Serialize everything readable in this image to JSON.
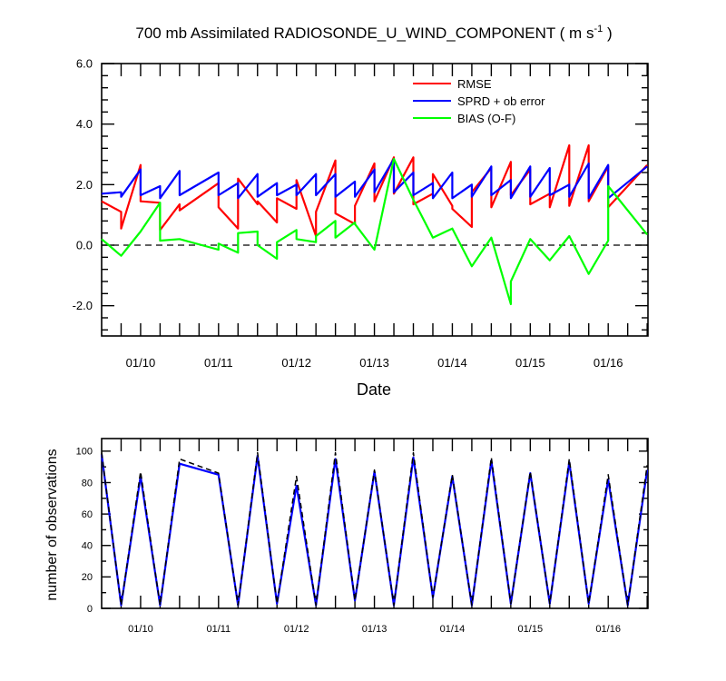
{
  "chart_data": [
    {
      "type": "line",
      "title": "700 mb Assimilated RADIOSONDE_U_WIND_COMPONENT ( m s",
      "title_unit_exponent": "-1",
      "title_suffix": " )",
      "xlabel": "Date",
      "ylabel": "",
      "ylim": [
        -3.0,
        6.0
      ],
      "y_ticks": [
        -2.0,
        0.0,
        2.0,
        4.0,
        6.0
      ],
      "y_tick_labels": [
        "-2.0",
        "0.0",
        "2.0",
        "4.0",
        "6.0"
      ],
      "xlim": [
        0,
        14.02
      ],
      "x_ticks": [
        1.0,
        3.0,
        5.0,
        7.0,
        9.0,
        11.0,
        13.0
      ],
      "x_tick_labels": [
        "01/10",
        "01/11",
        "01/12",
        "01/13",
        "01/14",
        "01/15",
        "01/16"
      ],
      "zero_line": true,
      "legend_position": "top-right",
      "series": [
        {
          "name": "RMSE",
          "color": "#ff0000",
          "x": [
            0.0,
            0.5,
            0.5,
            1.0,
            1.0,
            1.5,
            1.5,
            2.0,
            2.0,
            3.0,
            3.0,
            3.5,
            3.5,
            4.0,
            4.0,
            4.5,
            4.5,
            5.0,
            5.0,
            5.5,
            5.5,
            6.0,
            6.0,
            6.5,
            6.5,
            7.0,
            7.0,
            7.5,
            7.5,
            8.0,
            8.0,
            8.5,
            8.5,
            9.0,
            9.0,
            9.5,
            9.5,
            10.0,
            10.0,
            10.5,
            10.5,
            11.0,
            11.0,
            11.5,
            11.5,
            12.0,
            12.0,
            12.5,
            12.5,
            13.0,
            13.0,
            14.0
          ],
          "values": [
            1.45,
            1.1,
            0.55,
            2.65,
            1.45,
            1.4,
            0.5,
            1.35,
            1.15,
            2.05,
            1.25,
            0.55,
            2.2,
            1.35,
            1.45,
            0.75,
            1.55,
            1.2,
            2.15,
            0.3,
            1.1,
            2.8,
            1.05,
            0.7,
            1.3,
            2.7,
            1.45,
            2.9,
            1.7,
            2.9,
            1.35,
            1.7,
            2.35,
            1.3,
            1.2,
            0.6,
            1.75,
            2.55,
            1.25,
            2.75,
            1.65,
            2.5,
            1.35,
            1.7,
            1.25,
            3.3,
            1.3,
            3.3,
            1.45,
            2.6,
            1.25,
            2.65
          ]
        },
        {
          "name": "SPRD + ob error",
          "color": "#0000ff",
          "x": [
            0.0,
            0.5,
            0.5,
            1.0,
            1.0,
            1.5,
            1.5,
            2.0,
            2.0,
            3.0,
            3.0,
            3.5,
            3.5,
            4.0,
            4.0,
            4.5,
            4.5,
            5.0,
            5.0,
            5.5,
            5.5,
            6.0,
            6.0,
            6.5,
            6.5,
            7.0,
            7.0,
            7.5,
            7.5,
            8.0,
            8.0,
            8.5,
            8.5,
            9.0,
            9.0,
            9.5,
            9.5,
            10.0,
            10.0,
            10.5,
            10.5,
            11.0,
            11.0,
            11.5,
            11.5,
            12.0,
            12.0,
            12.5,
            12.5,
            13.0,
            13.0,
            14.0
          ],
          "values": [
            1.7,
            1.75,
            1.6,
            2.5,
            1.65,
            1.95,
            1.55,
            2.45,
            1.65,
            2.4,
            1.65,
            2.05,
            1.55,
            2.35,
            1.6,
            2.05,
            1.65,
            2.0,
            1.65,
            2.35,
            1.65,
            2.35,
            1.6,
            2.1,
            1.6,
            2.5,
            1.75,
            2.85,
            1.75,
            2.4,
            1.65,
            2.05,
            1.55,
            2.4,
            1.55,
            2.0,
            1.6,
            2.6,
            1.65,
            2.15,
            1.55,
            2.6,
            1.6,
            2.55,
            1.65,
            2.0,
            1.6,
            2.7,
            1.55,
            2.65,
            1.55,
            2.6
          ]
        },
        {
          "name": "BIAS (O-F)",
          "color": "#00ff00",
          "x": [
            0.0,
            0.5,
            0.5,
            1.0,
            1.0,
            1.5,
            1.5,
            2.0,
            2.0,
            3.0,
            3.0,
            3.5,
            3.5,
            4.0,
            4.0,
            4.5,
            4.5,
            5.0,
            5.0,
            5.5,
            5.5,
            6.0,
            6.0,
            6.5,
            6.5,
            7.0,
            7.0,
            7.5,
            7.5,
            8.0,
            8.0,
            8.5,
            8.5,
            9.0,
            9.0,
            9.5,
            9.5,
            10.0,
            10.0,
            10.5,
            10.5,
            11.0,
            11.0,
            11.5,
            11.5,
            12.0,
            12.0,
            12.5,
            12.5,
            13.0,
            13.0,
            14.0
          ],
          "values": [
            0.2,
            -0.35,
            -0.35,
            0.45,
            0.45,
            1.4,
            0.15,
            0.2,
            0.2,
            -0.15,
            0.05,
            -0.25,
            0.4,
            0.45,
            0.0,
            -0.45,
            0.1,
            0.5,
            0.2,
            0.1,
            0.3,
            0.8,
            0.25,
            0.75,
            0.7,
            -0.15,
            -0.15,
            2.85,
            2.85,
            1.5,
            1.5,
            0.25,
            0.25,
            0.55,
            0.55,
            -0.7,
            -0.7,
            0.25,
            0.25,
            -1.95,
            -1.2,
            0.2,
            0.2,
            -0.5,
            -0.5,
            0.3,
            0.3,
            -0.95,
            -0.95,
            0.15,
            1.95,
            0.35
          ]
        }
      ]
    },
    {
      "type": "line",
      "title": "",
      "xlabel": "",
      "ylabel": "number of observations",
      "ylim": [
        0,
        108
      ],
      "y_ticks": [
        0,
        20,
        40,
        60,
        80,
        100
      ],
      "y_tick_labels": [
        "0",
        "20",
        "40",
        "60",
        "80",
        "100"
      ],
      "xlim": [
        0,
        14.02
      ],
      "x_ticks": [
        1.0,
        3.0,
        5.0,
        7.0,
        9.0,
        11.0,
        13.0
      ],
      "x_tick_labels": [
        "01/10",
        "01/11",
        "01/12",
        "01/13",
        "01/14",
        "01/15",
        "01/16"
      ],
      "series": [
        {
          "name": "observations (blue)",
          "color": "#0000ff",
          "style": "solid",
          "x": [
            0.0,
            0.5,
            1.0,
            1.5,
            2.0,
            3.0,
            3.5,
            4.0,
            4.5,
            5.0,
            5.5,
            6.0,
            6.5,
            7.0,
            7.5,
            8.0,
            8.5,
            9.0,
            9.5,
            10.0,
            10.5,
            11.0,
            11.5,
            12.0,
            12.5,
            13.0,
            13.5,
            14.0
          ],
          "values": [
            98,
            2,
            84,
            2,
            92,
            85,
            2,
            97,
            3,
            78,
            2,
            95,
            5,
            87,
            2,
            96,
            7,
            84,
            2,
            94,
            3,
            86,
            3,
            93,
            3,
            82,
            2,
            88
          ]
        },
        {
          "name": "observations (black dashed)",
          "color": "#000000",
          "style": "dashed",
          "x": [
            0.0,
            0.5,
            1.0,
            1.5,
            2.0,
            3.0,
            3.5,
            4.0,
            4.5,
            5.0,
            5.5,
            6.0,
            6.5,
            7.0,
            7.5,
            8.0,
            8.5,
            9.0,
            9.5,
            10.0,
            10.5,
            11.0,
            11.5,
            12.0,
            12.5,
            13.0,
            13.5,
            14.0
          ],
          "values": [
            99,
            2,
            87,
            2,
            95,
            86,
            2,
            99,
            3,
            84,
            2,
            99,
            5,
            88,
            2,
            99,
            7,
            85,
            2,
            96,
            3,
            87,
            3,
            95,
            3,
            85,
            2,
            91
          ]
        }
      ]
    }
  ]
}
